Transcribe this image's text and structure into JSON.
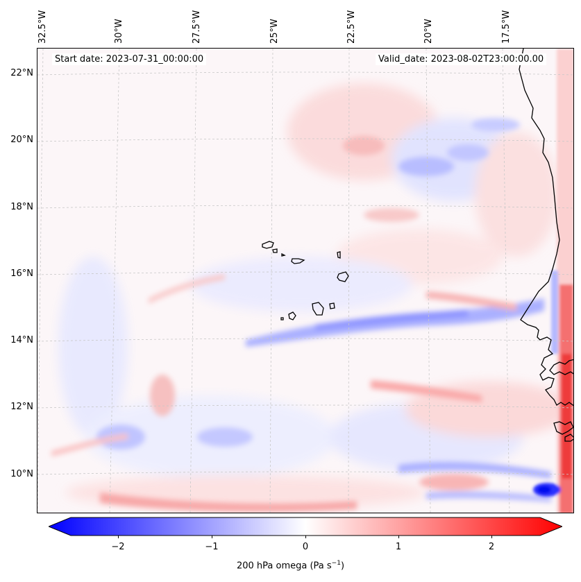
{
  "map": {
    "start_label": "Start date: 2023-07-31_00:00:00",
    "valid_label": "Valid_date: 2023-08-02T23:00:00.00",
    "lon_labels": [
      "32.5°W",
      "30°W",
      "27.5°W",
      "25°W",
      "22.5°W",
      "20°W",
      "17.5°W"
    ],
    "lat_labels": [
      "22°N",
      "20°N",
      "18°N",
      "16°N",
      "14°N",
      "12°N",
      "10°N"
    ],
    "features": [
      "Cabo Verde islands",
      "West African coastline"
    ]
  },
  "colorbar": {
    "ticks": [
      "−2",
      "−1",
      "0",
      "1",
      "2"
    ],
    "label_prefix": "200 hPa omega (Pa s",
    "label_exp": "−1",
    "label_suffix": ")",
    "range": [
      -2.6,
      2.6
    ],
    "colors": {
      "low": "#0000ff",
      "mid": "#ffffff",
      "high": "#ff0000"
    }
  }
}
